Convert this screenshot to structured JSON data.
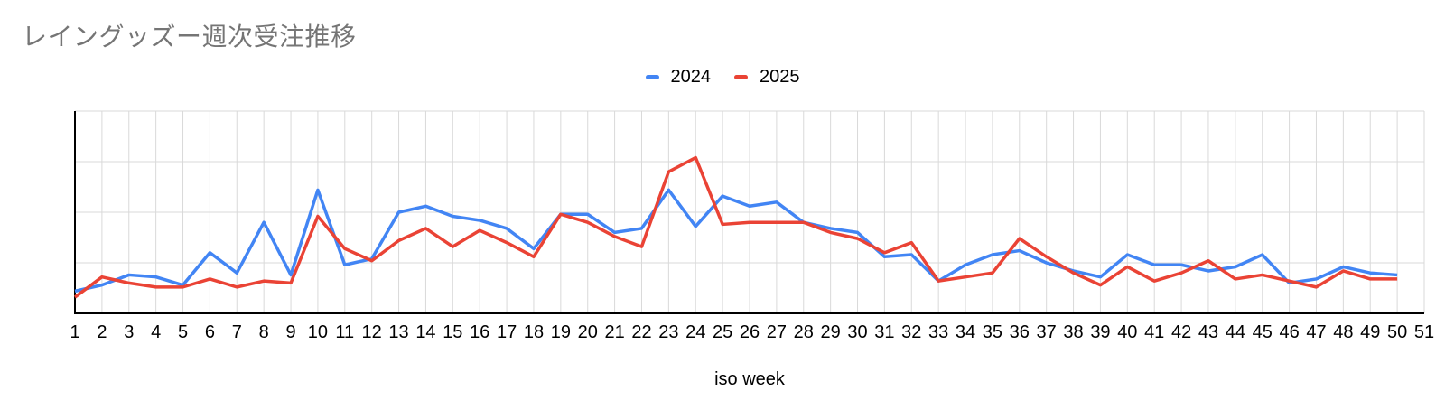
{
  "colors": {
    "background": "#ffffff",
    "title": "#757575",
    "grid": "#d9d9d9",
    "axis": "#000000",
    "tick_label": "#000000",
    "legend_label": "#000000",
    "series_2024": "#4285f4",
    "series_2025": "#ea4335"
  },
  "chart_data": {
    "type": "line",
    "title": "レイングッズー週次受注推移",
    "xlabel": "iso week",
    "ylabel": "",
    "legend_position": "top-center",
    "grid": true,
    "y_tick_labels_visible": false,
    "ylim": [
      0,
      100
    ],
    "y_gridlines": [
      0,
      25,
      50,
      75,
      100
    ],
    "x_ticks": [
      1,
      2,
      3,
      4,
      5,
      6,
      7,
      8,
      9,
      10,
      11,
      12,
      13,
      14,
      15,
      16,
      17,
      18,
      19,
      20,
      21,
      22,
      23,
      24,
      25,
      26,
      27,
      28,
      29,
      30,
      31,
      32,
      33,
      34,
      35,
      36,
      37,
      38,
      39,
      40,
      41,
      42,
      43,
      44,
      45,
      46,
      47,
      48,
      49,
      50,
      51
    ],
    "x": [
      1,
      2,
      3,
      4,
      5,
      6,
      7,
      8,
      9,
      10,
      11,
      12,
      13,
      14,
      15,
      16,
      17,
      18,
      19,
      20,
      21,
      22,
      23,
      24,
      25,
      26,
      27,
      28,
      29,
      30,
      31,
      32,
      33,
      34,
      35,
      36,
      37,
      38,
      39,
      40,
      41,
      42,
      43,
      44,
      45,
      46,
      47,
      48,
      49,
      50
    ],
    "series": [
      {
        "name": "2024",
        "color": "#4285f4",
        "values": [
          11,
          14,
          19,
          18,
          14,
          30,
          20,
          45,
          19,
          61,
          24,
          27,
          50,
          53,
          48,
          46,
          42,
          32,
          49,
          49,
          40,
          42,
          61,
          43,
          58,
          53,
          55,
          45,
          42,
          40,
          28,
          29,
          16,
          24,
          29,
          31,
          25,
          21,
          18,
          29,
          24,
          24,
          21,
          23,
          29,
          15,
          17,
          23,
          20,
          19
        ]
      },
      {
        "name": "2025",
        "color": "#ea4335",
        "values": [
          8,
          18,
          15,
          13,
          13,
          17,
          13,
          16,
          15,
          48,
          32,
          26,
          36,
          42,
          33,
          41,
          35,
          28,
          49,
          45,
          38,
          33,
          70,
          77,
          44,
          45,
          45,
          45,
          40,
          37,
          30,
          35,
          16,
          18,
          20,
          37,
          28,
          20,
          14,
          23,
          16,
          20,
          26,
          17,
          19,
          16,
          13,
          21,
          17,
          17
        ]
      }
    ],
    "note": "y-axis shows no numeric labels in source; series values estimated on a 0-100 relative scale against the four gridline bands; data series end at week 50 while axis extends to week 51"
  }
}
